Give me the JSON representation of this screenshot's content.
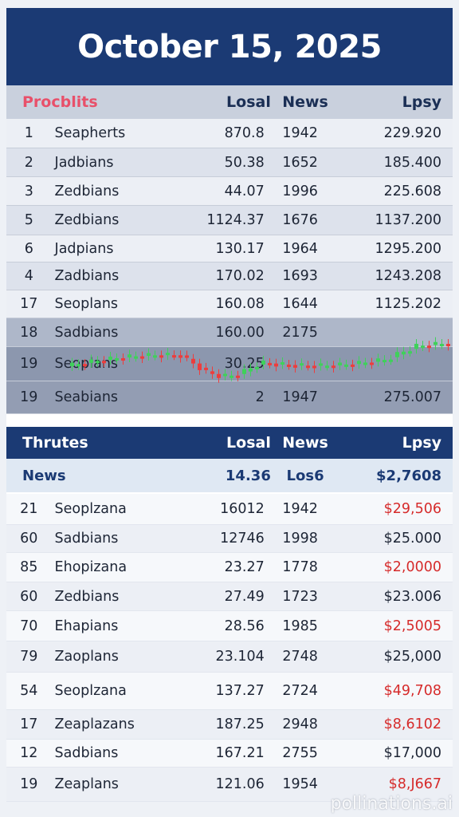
{
  "title": "October 15, 2025",
  "section1": {
    "headers": [
      "Procblits",
      "Losal",
      "News",
      "Lpsy"
    ],
    "rows": [
      {
        "num": "1",
        "name": "Seapherts",
        "a": "870.8",
        "b": "1942",
        "c": "229.920"
      },
      {
        "num": "2",
        "name": "Jadbians",
        "a": "50.38",
        "b": "1652",
        "c": "185.400"
      },
      {
        "num": "3",
        "name": "Zedbians",
        "a": "44.07",
        "b": "1996",
        "c": "225.608"
      },
      {
        "num": "5",
        "name": "Zedbians",
        "a": "1124.37",
        "b": "1676",
        "c": "1137.200"
      },
      {
        "num": "6",
        "name": "Jadpians",
        "a": "130.17",
        "b": "1964",
        "c": "1295.200"
      },
      {
        "num": "4",
        "name": "Zadbians",
        "a": "170.02",
        "b": "1693",
        "c": "1243.208"
      },
      {
        "num": "17",
        "name": "Seoplans",
        "a": "160.08",
        "b": "1644",
        "c": "1125.202"
      },
      {
        "num": "18",
        "name": "Sadbians",
        "a": "160.00",
        "b": "2175",
        "c": ""
      },
      {
        "num": "19",
        "name": "Seoplans",
        "a": "30.25",
        "b": "",
        "c": ""
      },
      {
        "num": "19",
        "name": "Seabians",
        "a": "2",
        "b": "1947",
        "c": "275.007"
      }
    ]
  },
  "section2": {
    "headers": [
      "Thrutes",
      "Losal",
      "News",
      "Lpsy"
    ],
    "sub": {
      "label": "News",
      "a": "14.36",
      "b": "Los6",
      "c": "$2,7608"
    },
    "rows": [
      {
        "num": "21",
        "name": "Seoplzana",
        "a": "16012",
        "b": "1942",
        "c": "$29,506",
        "tone": "red"
      },
      {
        "num": "60",
        "name": "Sadbians",
        "a": "12746",
        "b": "1998",
        "c": "$25.000",
        "tone": "dark"
      },
      {
        "num": "85",
        "name": "Ehopizana",
        "a": "23.27",
        "b": "1778",
        "c": "$2,0000",
        "tone": "red"
      },
      {
        "num": "60",
        "name": "Zedbians",
        "a": "27.49",
        "b": "1723",
        "c": "$23.006",
        "tone": "dark"
      },
      {
        "num": "70",
        "name": "Ehapians",
        "a": "28.56",
        "b": "1985",
        "c": "$2,5005",
        "tone": "red"
      },
      {
        "num": "79",
        "name": "Zaoplans",
        "a": "23.104",
        "b": "2748",
        "c": "$25,000",
        "tone": "dark"
      },
      {
        "num": "54",
        "name": "Seoplzana",
        "a": "137.27",
        "b": "2724",
        "c": "$49,708",
        "tone": "red"
      },
      {
        "num": "17",
        "name": "Zeaplazans",
        "a": "187.25",
        "b": "2948",
        "c": "$8,6102",
        "tone": "red"
      },
      {
        "num": "12",
        "name": "Sadbians",
        "a": "167.21",
        "b": "2755",
        "c": "$17,000",
        "tone": "dark"
      },
      {
        "num": "19",
        "name": "Zeaplans",
        "a": "121.06",
        "b": "1954",
        "c": "$8,J667",
        "tone": "red"
      }
    ]
  },
  "colors": {
    "navy": "#1b3a74",
    "red": "#d62b2b",
    "pink": "#e8506a",
    "candle_up": "#3fd15a",
    "candle_down": "#ee3c3c"
  },
  "watermark": "pollinations.ai"
}
